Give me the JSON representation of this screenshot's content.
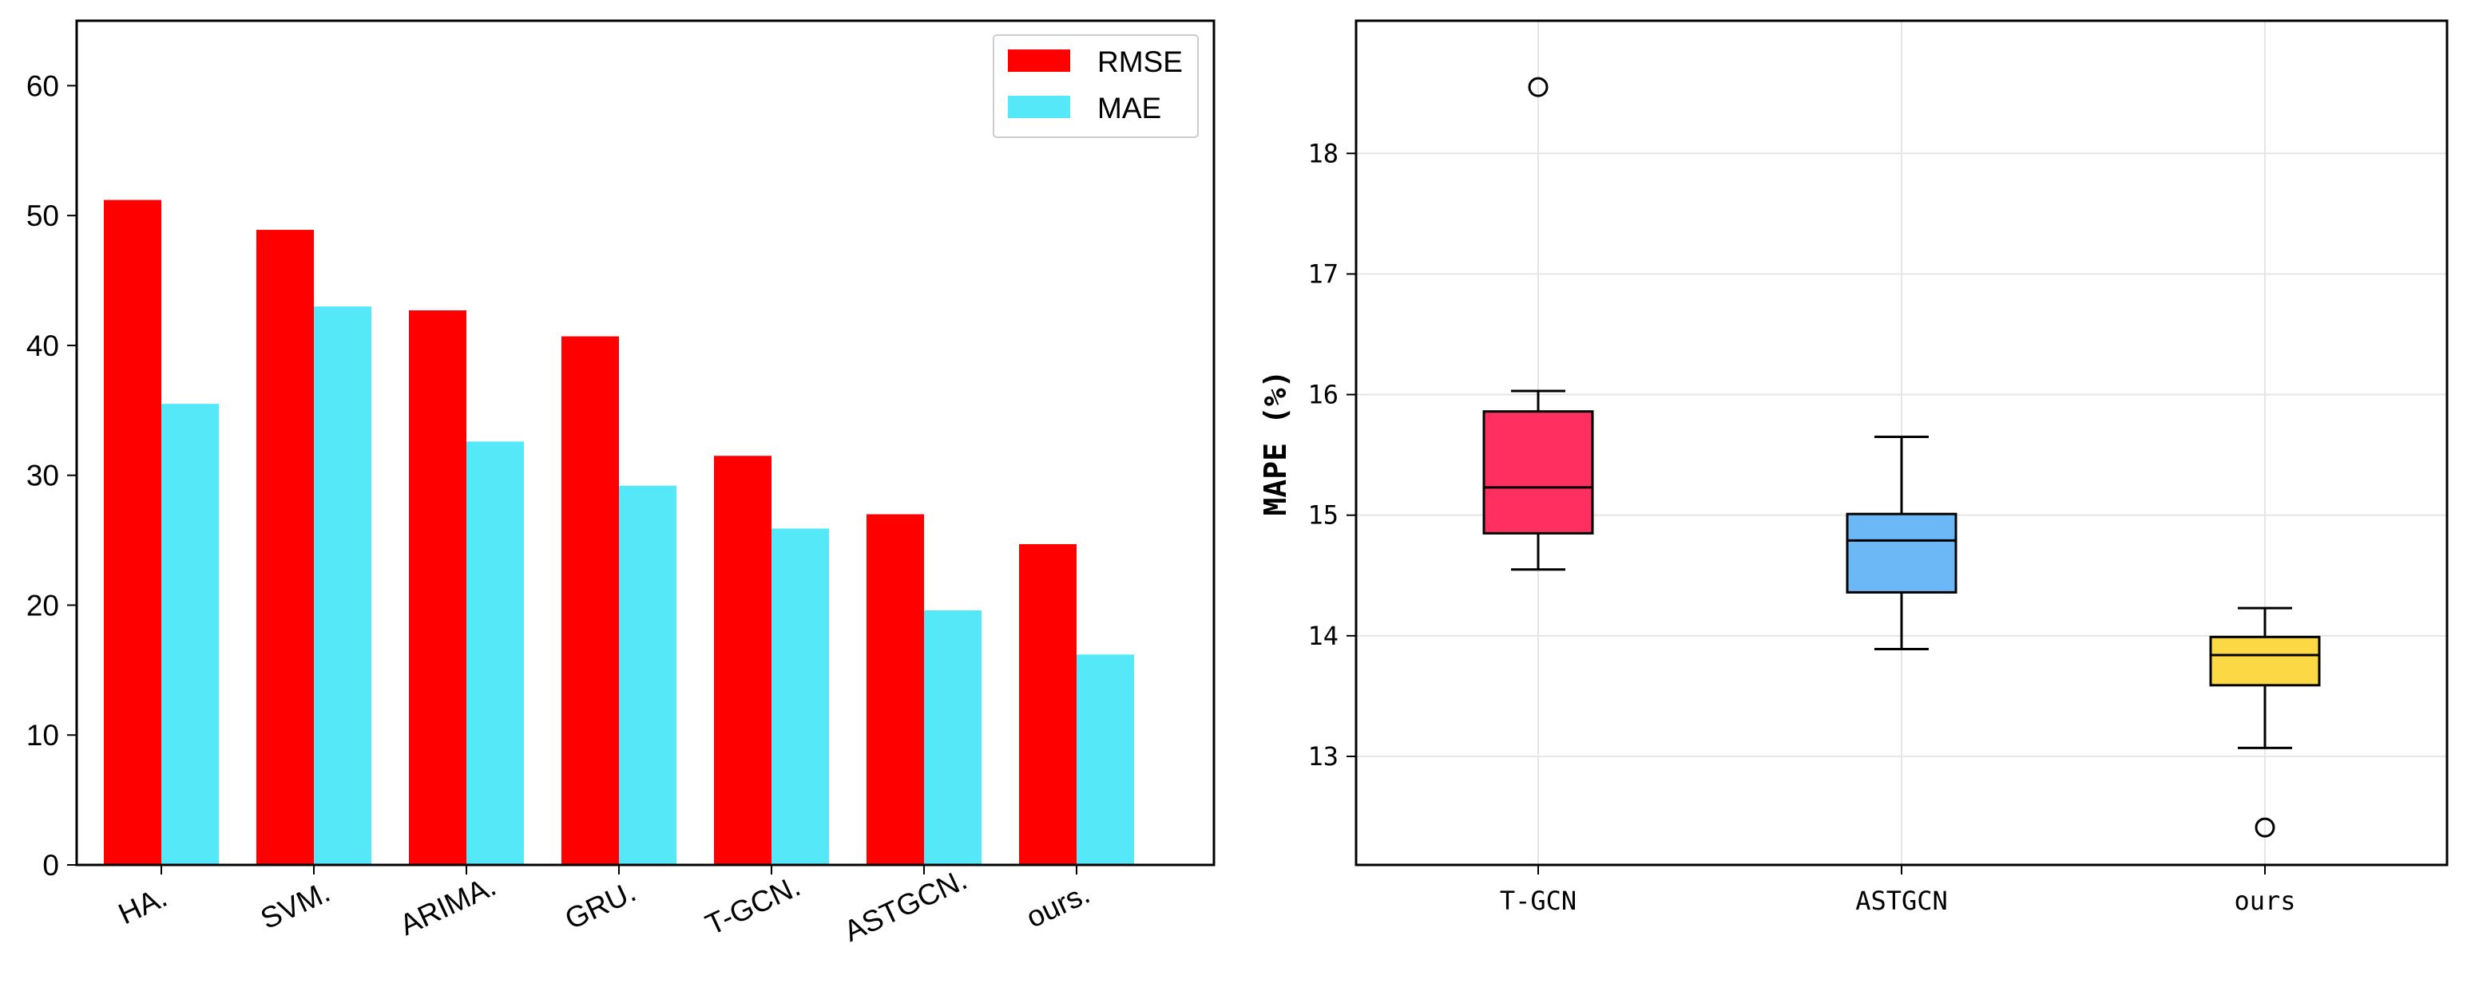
{
  "chart_data": [
    {
      "type": "bar",
      "categories": [
        "HA.",
        "SVM.",
        "ARIMA.",
        "GRU.",
        "T-GCN.",
        "ASTGCN.",
        "ours."
      ],
      "series": [
        {
          "name": "RMSE",
          "values": [
            51.2,
            48.9,
            42.7,
            40.7,
            31.5,
            27.0,
            24.7
          ],
          "color": "#ff0000"
        },
        {
          "name": "MAE",
          "values": [
            35.5,
            43.0,
            32.6,
            29.2,
            25.9,
            19.6,
            16.2
          ],
          "color": "#55e8f8"
        }
      ],
      "ylim": [
        0,
        65
      ],
      "yticks": [
        0,
        10,
        20,
        30,
        40,
        50,
        60
      ],
      "legend": "top-right",
      "grid": false
    },
    {
      "type": "box",
      "categories": [
        "T-GCN",
        "ASTGCN",
        "ours"
      ],
      "ylabel": "MAPE (%)",
      "ylim": [
        12.1,
        19.1
      ],
      "yticks": [
        13,
        14,
        15,
        16,
        17,
        18
      ],
      "grid": true,
      "boxes": [
        {
          "name": "T-GCN",
          "whisker_low": 14.55,
          "q1": 14.85,
          "median": 15.23,
          "q3": 15.86,
          "whisker_high": 16.03,
          "outliers": [
            18.55
          ],
          "color": "#ff3060"
        },
        {
          "name": "ASTGCN",
          "whisker_low": 13.89,
          "q1": 14.36,
          "median": 14.79,
          "q3": 15.01,
          "whisker_high": 15.65,
          "outliers": [],
          "color": "#6cb8f6"
        },
        {
          "name": "ours",
          "whisker_low": 13.07,
          "q1": 13.59,
          "median": 13.84,
          "q3": 13.99,
          "whisker_high": 14.23,
          "outliers": [
            12.41
          ],
          "color": "#fcd944"
        }
      ]
    }
  ]
}
